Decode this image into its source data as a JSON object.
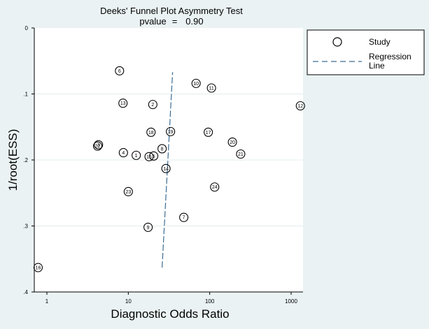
{
  "chart_data": {
    "type": "scatter",
    "title": "Deeks' Funnel Plot Asymmetry Test",
    "subtitle_label": "pvalue",
    "subtitle_eq": "=",
    "subtitle_value": "0.90",
    "xlabel": "Diagnostic Odds Ratio",
    "ylabel": "1/root(ESS)",
    "x_scale": "log",
    "xlim": [
      0.7,
      1400
    ],
    "ylim": [
      0,
      0.4
    ],
    "y_reversed": true,
    "x_ticks": [
      {
        "value": 1,
        "label": "1"
      },
      {
        "value": 10,
        "label": "10"
      },
      {
        "value": 100,
        "label": "100"
      },
      {
        "value": 1000,
        "label": "1000"
      }
    ],
    "y_ticks": [
      {
        "value": 0,
        "label": "0"
      },
      {
        "value": 0.1,
        "label": ".1"
      },
      {
        "value": 0.2,
        "label": ".2"
      },
      {
        "value": 0.3,
        "label": ".3"
      },
      {
        "value": 0.4,
        "label": ".4"
      }
    ],
    "grid": true,
    "legend": {
      "position": "right",
      "items": [
        {
          "marker": "circle",
          "label": "Study"
        },
        {
          "marker": "dashed-line",
          "label_line1": "Regression",
          "label_line2": "Line"
        }
      ]
    },
    "points": [
      {
        "label": "1",
        "x": 12.5,
        "y": 0.193
      },
      {
        "label": "2",
        "x": 20,
        "y": 0.116
      },
      {
        "label": "3",
        "x": 4.3,
        "y": 0.177
      },
      {
        "label": "4",
        "x": 8.7,
        "y": 0.189
      },
      {
        "label": "5",
        "x": 20.5,
        "y": 0.194
      },
      {
        "label": "6",
        "x": 7.8,
        "y": 0.065
      },
      {
        "label": "7",
        "x": 48,
        "y": 0.287
      },
      {
        "label": "8",
        "x": 26,
        "y": 0.183
      },
      {
        "label": "9",
        "x": 17.5,
        "y": 0.302
      },
      {
        "label": "10",
        "x": 68,
        "y": 0.084
      },
      {
        "label": "11",
        "x": 105,
        "y": 0.091
      },
      {
        "label": "12",
        "x": 1300,
        "y": 0.118
      },
      {
        "label": "13",
        "x": 8.6,
        "y": 0.114
      },
      {
        "label": "14",
        "x": 29,
        "y": 0.213
      },
      {
        "label": "15",
        "x": 18,
        "y": 0.195
      },
      {
        "label": "16",
        "x": 0.78,
        "y": 0.363
      },
      {
        "label": "17",
        "x": 96,
        "y": 0.158
      },
      {
        "label": "18",
        "x": 19,
        "y": 0.158
      },
      {
        "label": "19",
        "x": 33,
        "y": 0.157
      },
      {
        "label": "20",
        "x": 190,
        "y": 0.173
      },
      {
        "label": "21",
        "x": 240,
        "y": 0.191
      },
      {
        "label": "22",
        "x": 4.2,
        "y": 0.179
      },
      {
        "label": "23",
        "x": 10,
        "y": 0.248
      },
      {
        "label": "24",
        "x": 115,
        "y": 0.241
      }
    ],
    "regression_line": {
      "x_start": 26,
      "y_start": 0.363,
      "x_end": 35,
      "y_end": 0.067
    },
    "colors": {
      "background": "#eaf2f3",
      "plot_background": "#ffffff",
      "regression": "#3b6d94",
      "marker": "#000000"
    }
  }
}
